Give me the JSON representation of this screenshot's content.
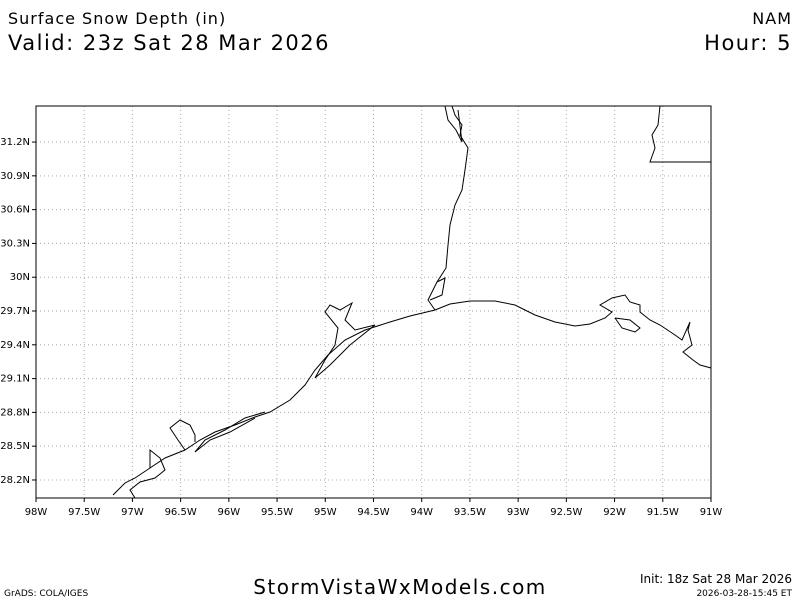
{
  "header": {
    "title": "Surface Snow Depth (in)",
    "valid": "Valid: 23z Sat 28 Mar 2026",
    "model": "NAM",
    "hour": "Hour: 5"
  },
  "map": {
    "xlim": [
      -98,
      -91
    ],
    "ylim": [
      28.04,
      31.52
    ],
    "xticks": [
      {
        "value": -98,
        "label": "98W"
      },
      {
        "value": -97.5,
        "label": "97.5W"
      },
      {
        "value": -97,
        "label": "97W"
      },
      {
        "value": -96.5,
        "label": "96.5W"
      },
      {
        "value": -96,
        "label": "96W"
      },
      {
        "value": -95.5,
        "label": "95.5W"
      },
      {
        "value": -95,
        "label": "95W"
      },
      {
        "value": -94.5,
        "label": "94.5W"
      },
      {
        "value": -94,
        "label": "94W"
      },
      {
        "value": -93.5,
        "label": "93.5W"
      },
      {
        "value": -93,
        "label": "93W"
      },
      {
        "value": -92.5,
        "label": "92.5W"
      },
      {
        "value": -92,
        "label": "92W"
      },
      {
        "value": -91.5,
        "label": "91.5W"
      },
      {
        "value": -91,
        "label": "91W"
      }
    ],
    "yticks": [
      {
        "value": 28.2,
        "label": "28.2N"
      },
      {
        "value": 28.5,
        "label": "28.5N"
      },
      {
        "value": 28.8,
        "label": "28.8N"
      },
      {
        "value": 29.1,
        "label": "29.1N"
      },
      {
        "value": 29.4,
        "label": "29.4N"
      },
      {
        "value": 29.7,
        "label": "29.7N"
      },
      {
        "value": 30,
        "label": "30N"
      },
      {
        "value": 30.3,
        "label": "30.3N"
      },
      {
        "value": 30.6,
        "label": "30.6N"
      },
      {
        "value": 30.9,
        "label": "30.9N"
      },
      {
        "value": 31.2,
        "label": "31.2N"
      }
    ],
    "grid": true
  },
  "footer": {
    "credit": "GrADS: COLA/IGES",
    "site": "StormVistaWxModels.com",
    "init": "Init: 18z Sat 28 Mar 2026",
    "stamp": "2026-03-28-15:45 ET"
  }
}
